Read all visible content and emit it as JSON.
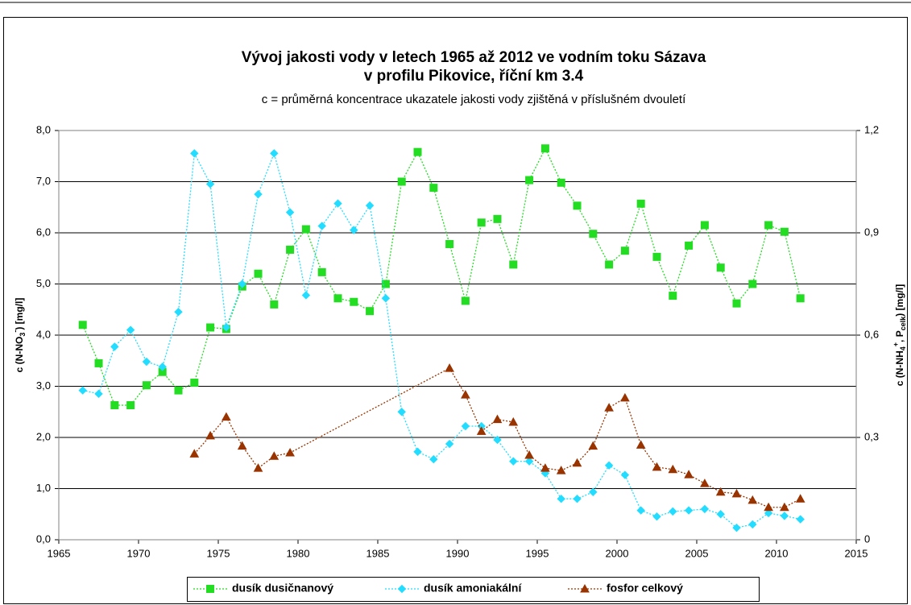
{
  "chart_data": {
    "type": "line",
    "title": [
      "Vývoj jakosti vody v letech 1965 až 2012 ve vodním toku Sázava",
      "v profilu Pikovice, říční km 3.4"
    ],
    "subtitle": "c = průměrná koncentrace ukazatele jakosti vody zjištěná v příslušném dvouletí",
    "ylabel": [
      "c (N-NO",
      "3",
      "-",
      ") [mg/l]"
    ],
    "y2label": [
      "c (N-NH",
      "4",
      "+",
      ", P",
      "celk",
      ") [mg/l]"
    ],
    "xlim": [
      1965,
      2015
    ],
    "xticks": [
      1965,
      1970,
      1975,
      1980,
      1985,
      1990,
      1995,
      2000,
      2005,
      2010,
      2015
    ],
    "ylim": [
      0,
      8
    ],
    "yticks": [
      {
        "value": 0,
        "label": "0,0"
      },
      {
        "value": 1,
        "label": "1,0"
      },
      {
        "value": 2,
        "label": "2,0"
      },
      {
        "value": 3,
        "label": "3,0"
      },
      {
        "value": 4,
        "label": "4,0"
      },
      {
        "value": 5,
        "label": "5,0"
      },
      {
        "value": 6,
        "label": "6,0"
      },
      {
        "value": 7,
        "label": "7,0"
      },
      {
        "value": 8,
        "label": "8,0"
      }
    ],
    "y2lim": [
      0,
      1.2
    ],
    "y2ticks": [
      0,
      {
        "value": 0.3,
        "label": "0,3"
      },
      {
        "value": 0.6,
        "label": "0,6"
      },
      {
        "value": 0.9,
        "label": "0,9"
      },
      {
        "value": 1.2,
        "label": "1,2"
      }
    ],
    "grid": true,
    "legend": "bottom",
    "x": [
      1966.5,
      1967.5,
      1968.5,
      1969.5,
      1970.5,
      1971.5,
      1972.5,
      1973.5,
      1974.5,
      1975.5,
      1976.5,
      1977.5,
      1978.5,
      1979.5,
      1980.5,
      1981.5,
      1982.5,
      1983.5,
      1984.5,
      1985.5,
      1986.5,
      1987.5,
      1988.5,
      1989.5,
      1990.5,
      1991.5,
      1992.5,
      1993.5,
      1994.5,
      1995.5,
      1996.5,
      1997.5,
      1998.5,
      1999.5,
      2000.5,
      2001.5,
      2002.5,
      2003.5,
      2004.5,
      2005.5,
      2006.5,
      2007.5,
      2008.5,
      2009.5,
      2010.5,
      2011.5
    ],
    "series": [
      {
        "name": "dusík dusičnanový",
        "color": "#22dd22",
        "marker": "square",
        "axis": "y",
        "values": [
          4.2,
          3.45,
          2.63,
          2.63,
          3.02,
          3.28,
          2.92,
          3.07,
          4.15,
          4.12,
          4.95,
          5.2,
          4.6,
          5.67,
          6.07,
          5.23,
          4.72,
          4.65,
          4.47,
          5.0,
          7.0,
          7.58,
          6.88,
          5.78,
          4.67,
          6.2,
          6.27,
          5.38,
          7.03,
          7.65,
          6.98,
          6.53,
          5.98,
          5.38,
          5.65,
          6.57,
          5.53,
          4.77,
          5.75,
          6.15,
          5.32,
          4.62,
          5.0,
          6.15,
          6.02,
          4.72
        ]
      },
      {
        "name": "dusík amoniakální",
        "color": "#22ddff",
        "marker": "diamond",
        "axis": "y2",
        "values": [
          0.438,
          0.428,
          0.566,
          0.615,
          0.522,
          0.507,
          0.668,
          1.133,
          1.043,
          0.623,
          0.75,
          1.013,
          1.133,
          0.96,
          0.717,
          0.92,
          0.986,
          0.908,
          0.98,
          0.708,
          0.375,
          0.258,
          0.236,
          0.281,
          0.333,
          0.333,
          0.293,
          0.23,
          0.23,
          0.195,
          0.12,
          0.12,
          0.14,
          0.218,
          0.19,
          0.086,
          0.068,
          0.083,
          0.086,
          0.09,
          0.075,
          0.035,
          0.045,
          0.078,
          0.07,
          0.06
        ]
      },
      {
        "name": "fosfor celkový",
        "color": "#993300",
        "marker": "triangle",
        "axis": "y2",
        "x": [
          1973.5,
          1974.5,
          1975.5,
          1976.5,
          1977.5,
          1978.5,
          1979.5,
          1989.5,
          1990.5,
          1991.5,
          1992.5,
          1993.5,
          1994.5,
          1995.5,
          1996.5,
          1997.5,
          1998.5,
          1999.5,
          2000.5,
          2001.5,
          2002.5,
          2003.5,
          2004.5,
          2005.5,
          2006.5,
          2007.5,
          2008.5,
          2009.5,
          2010.5,
          2011.5
        ],
        "values": [
          0.252,
          0.305,
          0.36,
          0.275,
          0.21,
          0.245,
          0.255,
          0.503,
          0.425,
          0.318,
          0.353,
          0.345,
          0.248,
          0.21,
          0.203,
          0.225,
          0.275,
          0.387,
          0.416,
          0.278,
          0.213,
          0.206,
          0.191,
          0.165,
          0.14,
          0.135,
          0.116,
          0.095,
          0.095,
          0.12
        ]
      }
    ]
  }
}
